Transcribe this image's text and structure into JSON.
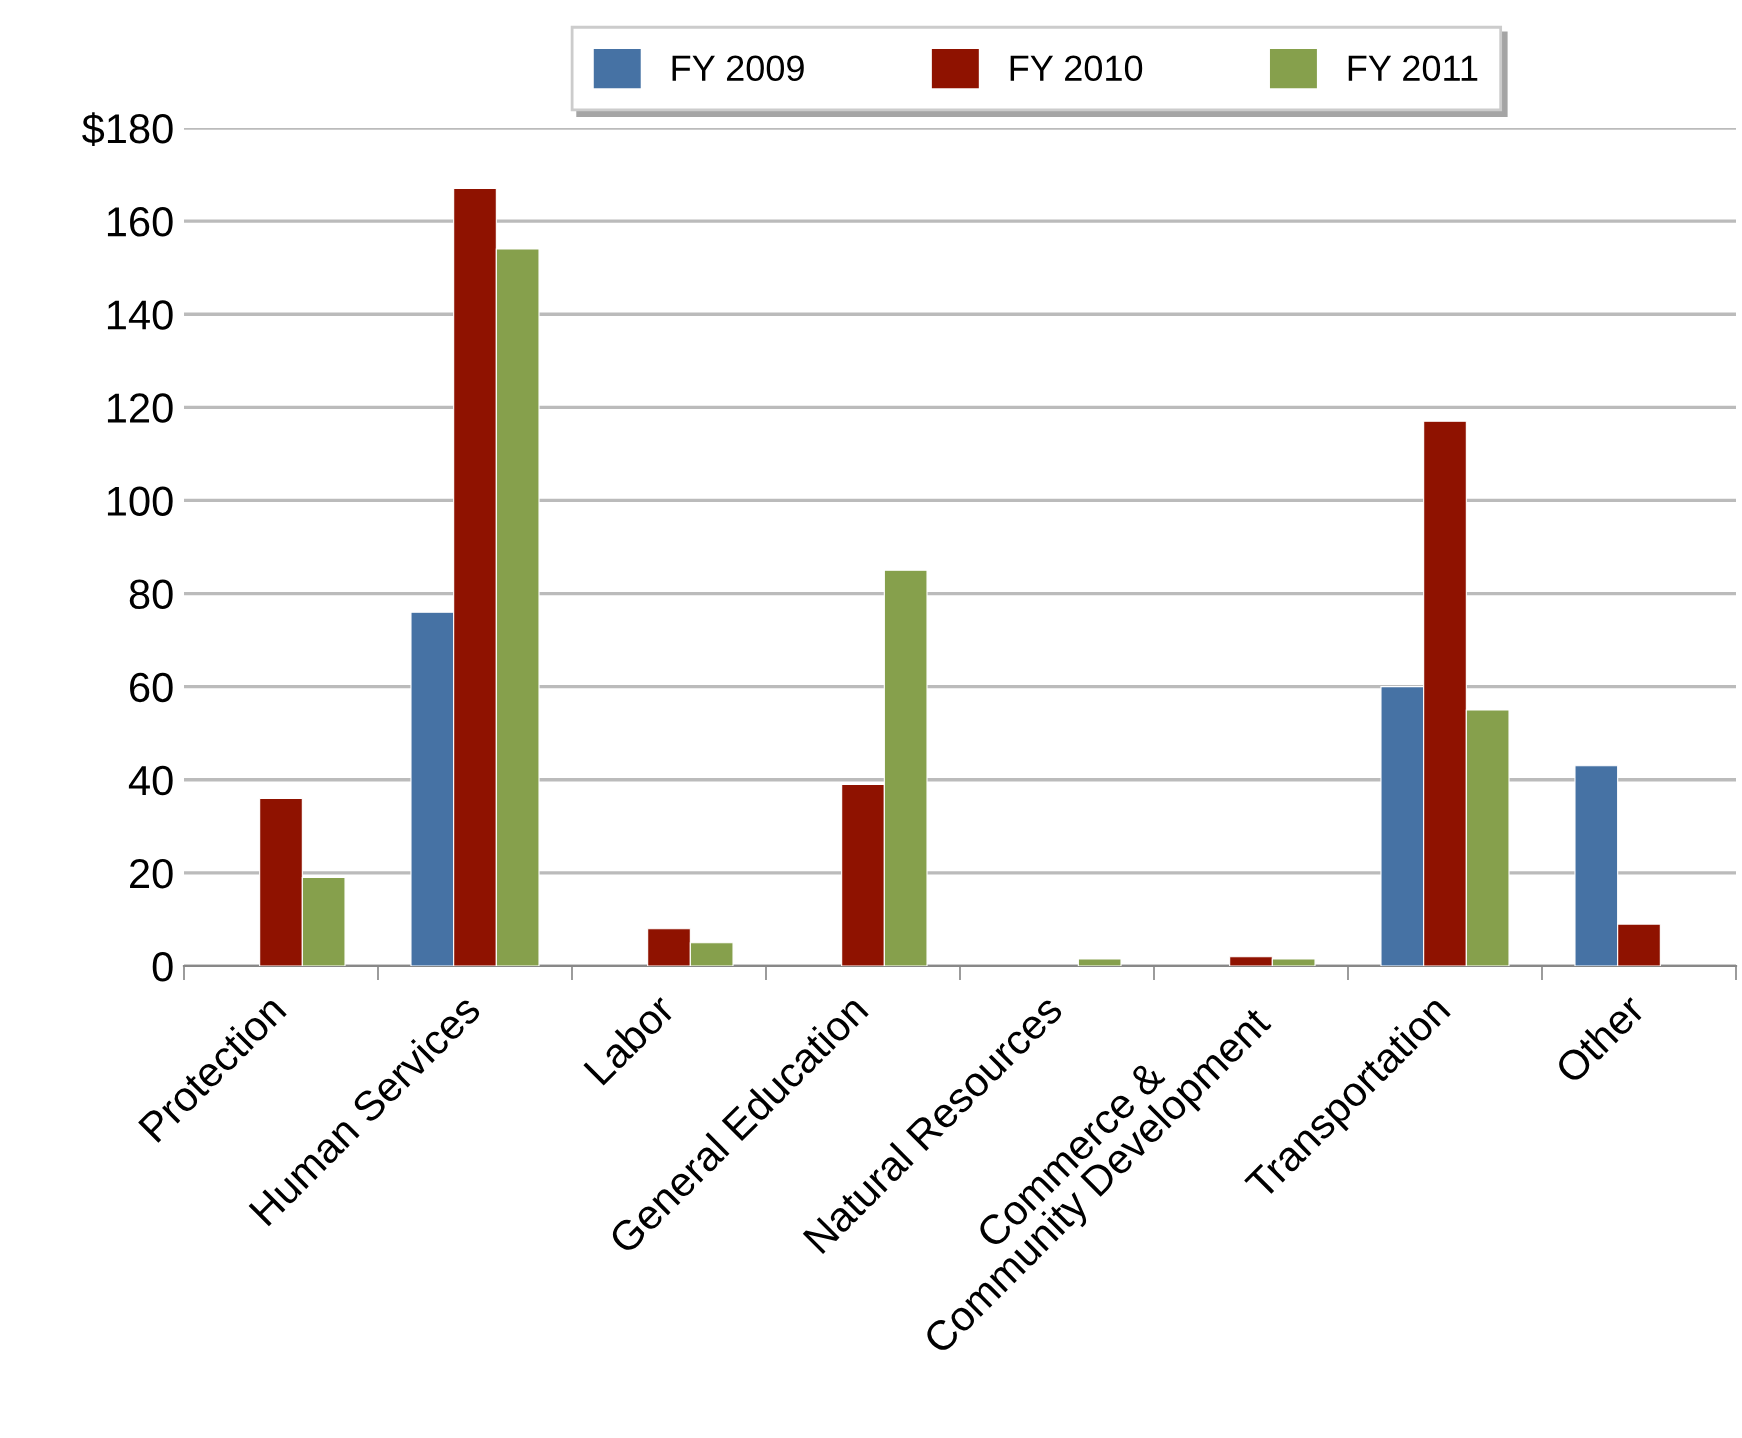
{
  "chart_data": {
    "type": "bar",
    "categories": [
      "Protection",
      "Human Services",
      "Labor",
      "General Education",
      "Natural Resources",
      "Commerce &\nCommunity Development",
      "Transportation",
      "Other"
    ],
    "series": [
      {
        "name": "FY 2009",
        "color": "#4672a4",
        "values": [
          null,
          76,
          null,
          null,
          null,
          null,
          60,
          43
        ]
      },
      {
        "name": "FY 2010",
        "color": "#8f1200",
        "values": [
          36,
          167,
          8,
          39,
          null,
          2,
          117,
          9
        ]
      },
      {
        "name": "FY 2011",
        "color": "#86a04c",
        "values": [
          19,
          154,
          5,
          85,
          1.5,
          1.5,
          55,
          null
        ]
      }
    ],
    "ylim": [
      0,
      180
    ],
    "yticks": [
      0,
      20,
      40,
      60,
      80,
      100,
      120,
      140,
      160,
      {
        "value": 180,
        "label": "$180"
      }
    ],
    "grid": "y",
    "legend": "top right"
  }
}
